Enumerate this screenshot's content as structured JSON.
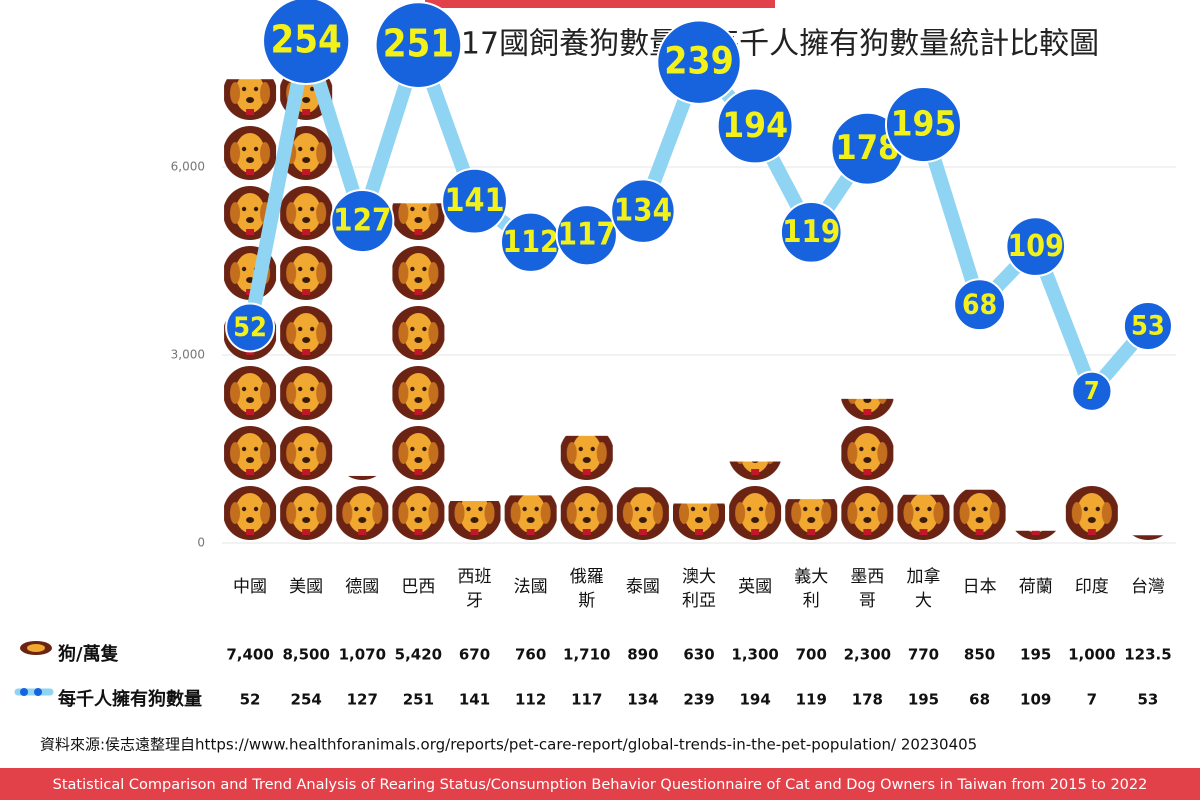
{
  "chart_data": {
    "type": "bar",
    "title": "全球17國飼養狗數量與每千人擁有狗數量統計比較圖",
    "categories": [
      "中國",
      "美國",
      "德國",
      "巴西",
      "西班牙",
      "法國",
      "俄羅斯",
      "泰國",
      "澳大利亞",
      "英國",
      "義大利",
      "墨西哥",
      "加拿大",
      "日本",
      "荷蘭",
      "印度",
      "台灣"
    ],
    "series": [
      {
        "name": "狗/萬隻",
        "color": "#6b2414",
        "values": [
          7400,
          8500,
          1070,
          5420,
          670,
          760,
          1710,
          890,
          630,
          1300,
          700,
          2300,
          770,
          850,
          195,
          1000,
          123.5
        ],
        "value_labels": [
          "7,400",
          "8,500",
          "1,070",
          "5,420",
          "670",
          "760",
          "1,710",
          "890",
          "630",
          "1,300",
          "700",
          "2,300",
          "770",
          "850",
          "195",
          "1,000",
          "123.5"
        ]
      },
      {
        "name": "每千人擁有狗數量",
        "type": "line",
        "axis": "y2",
        "color": "#1762dd",
        "line_color": "#8fd4f2",
        "values": [
          52,
          254,
          127,
          251,
          141,
          112,
          117,
          134,
          239,
          194,
          119,
          178,
          195,
          68,
          109,
          7,
          53
        ]
      }
    ],
    "ylim": [
      0,
      8600
    ],
    "yticks": [
      0,
      {
        "value": 3000,
        "label": "3,000"
      },
      {
        "value": 6000,
        "label": "6,000"
      }
    ],
    "y2lim": [
      -100,
      280
    ],
    "grid": true,
    "source": "資料來源:侯志遠整理自https://www.healthforanimals.org/reports/pet-care-report/global-trends-in-the-pet-population/ 20230405",
    "footer": "Statistical Comparison and Trend Analysis of Rearing Status/Consumption Behavior Questionnaire of Cat and Dog Owners in Taiwan from 2015 to 2022"
  }
}
